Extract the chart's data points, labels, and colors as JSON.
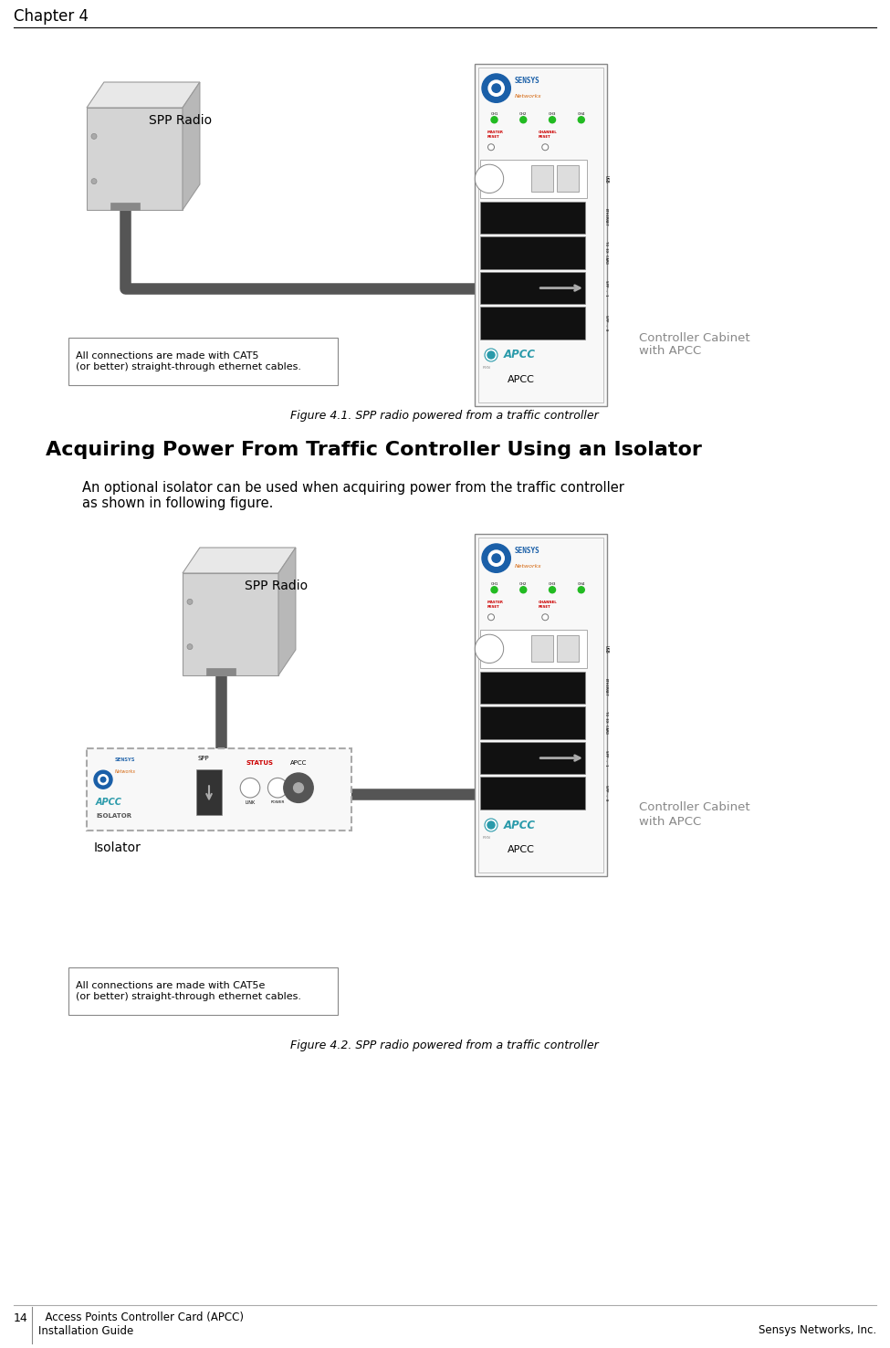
{
  "page_title": "Chapter 4",
  "footer_left_line1": "14    Access Points Controller Card (APCC)",
  "footer_left_line2": "Installation Guide",
  "footer_right": "Sensys Networks, Inc.",
  "fig1_caption": "Figure 4.1. SPP radio powered from a traffic controller",
  "fig2_caption": "Figure 4.2. SPP radio powered from a traffic controller",
  "section_title": "Acquiring Power From Traffic Controller Using an Isolator",
  "section_body_line1": "An optional isolator can be used when acquiring power from the traffic controller",
  "section_body_line2": "as shown in following figure.",
  "fig1_note": "All connections are made with CAT5\n(or better) straight-through ethernet cables.",
  "fig2_note": "All connections are made with CAT5e\n(or better) straight-through ethernet cables.",
  "label_spp_radio": "SPP Radio",
  "label_controller_cabinet": "Controller Cabinet\nwith APCC",
  "label_isolator": "Isolator",
  "label_apcc1": "APCC",
  "label_apcc2": "APCC",
  "bg_color": "#ffffff",
  "cable_color": "#555555",
  "sensys_blue": "#1a5fa8",
  "sensys_orange": "#d4640a",
  "led_green": "#22bb22",
  "reset_red": "#cc0000",
  "port_black": "#111111",
  "card_bg": "#f8f8f8",
  "card_border": "#666666",
  "apcc_teal": "#2a9aaa",
  "isolator_dash": "#aaaaaa"
}
